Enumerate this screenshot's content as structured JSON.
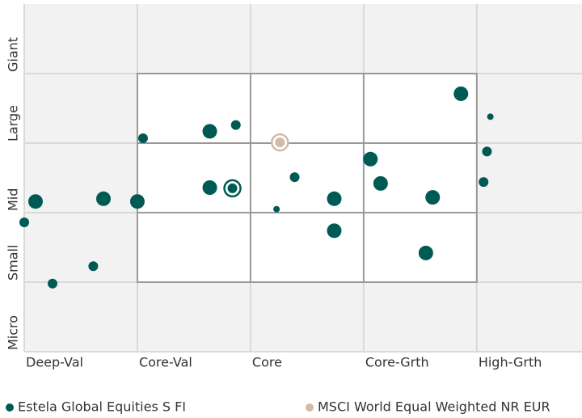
{
  "chart_data": {
    "type": "scatter",
    "xlim": [
      0,
      4.93
    ],
    "ylim": [
      0,
      5
    ],
    "xticks": [
      {
        "value": 0,
        "label": "Deep-Val"
      },
      {
        "value": 1,
        "label": "Core-Val"
      },
      {
        "value": 2,
        "label": "Core"
      },
      {
        "value": 3,
        "label": "Core-Grth"
      },
      {
        "value": 4,
        "label": "High-Grth"
      }
    ],
    "yticks": [
      {
        "value": 0,
        "label": "Micro"
      },
      {
        "value": 1,
        "label": "Small"
      },
      {
        "value": 2,
        "label": "Mid"
      },
      {
        "value": 3,
        "label": "Large"
      },
      {
        "value": 4,
        "label": "Giant"
      }
    ],
    "grid": true,
    "zone": {
      "x": [
        1,
        4
      ],
      "y": [
        1,
        4
      ]
    },
    "series": [
      {
        "name": "Estela Global Equities S FI",
        "color": "#005a54",
        "x": [
          0,
          0.1,
          0.25,
          0.61,
          0.7,
          1.0,
          1.05,
          1.64,
          1.87,
          1.64,
          2.23,
          2.39,
          2.74,
          2.74,
          3.06,
          3.15,
          3.61,
          3.55,
          3.86,
          4.12,
          4.09,
          4.06
        ],
        "values": [
          1.86,
          2.16,
          0.98,
          1.23,
          2.2,
          2.16,
          3.07,
          3.17,
          3.26,
          2.36,
          2.05,
          2.51,
          2.2,
          1.74,
          2.77,
          2.42,
          2.22,
          1.42,
          3.71,
          3.38,
          2.88,
          2.44
        ],
        "sizes": [
          6,
          9,
          6,
          6,
          9,
          9,
          6,
          9,
          6,
          9,
          4,
          6,
          9,
          9,
          9,
          9,
          9,
          9,
          9,
          4,
          6,
          6
        ],
        "centroid": {
          "x": 1.84,
          "y": 2.35
        }
      },
      {
        "name": "MSCI World Equal Weighted NR EUR",
        "color": "#d4b9a6",
        "centroid": {
          "x": 2.26,
          "y": 3.01
        }
      }
    ]
  }
}
